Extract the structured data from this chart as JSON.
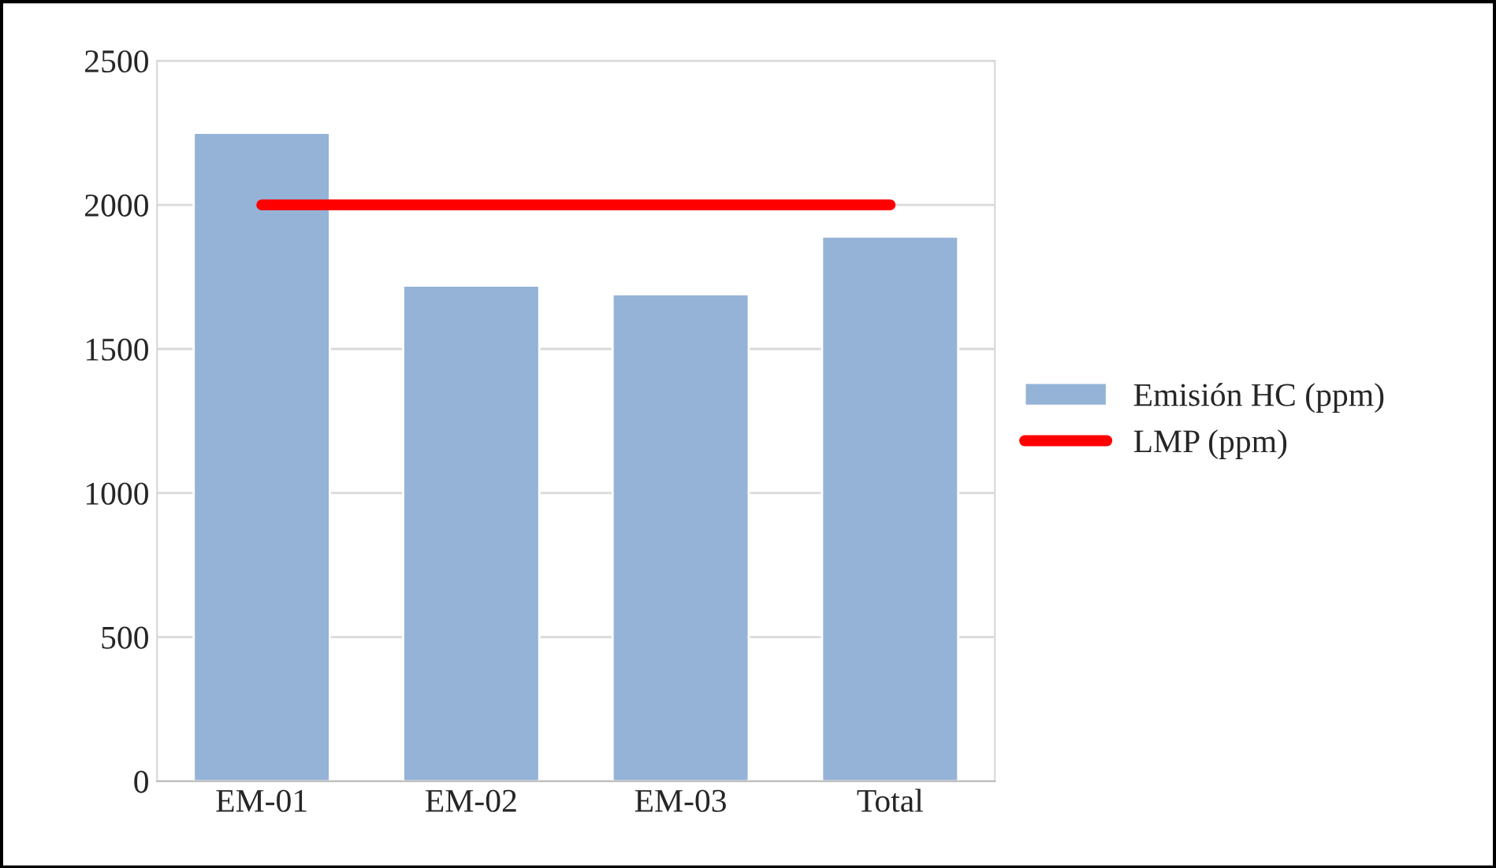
{
  "chart_data": {
    "type": "bar",
    "categories": [
      "EM-01",
      "EM-02",
      "EM-03",
      "Total"
    ],
    "series": [
      {
        "name": "Emisión HC (ppm)",
        "color": "#95b3d7",
        "values": [
          2250,
          1720,
          1690,
          1890
        ]
      },
      {
        "name": "LMP (ppm)",
        "type": "line",
        "color": "#ff0000",
        "values": [
          2000,
          2000,
          2000,
          2000
        ]
      }
    ],
    "ylim": [
      0,
      2500
    ],
    "yticks": [
      0,
      500,
      1000,
      1500,
      2000,
      2500
    ],
    "grid": "y",
    "legend": "right"
  }
}
